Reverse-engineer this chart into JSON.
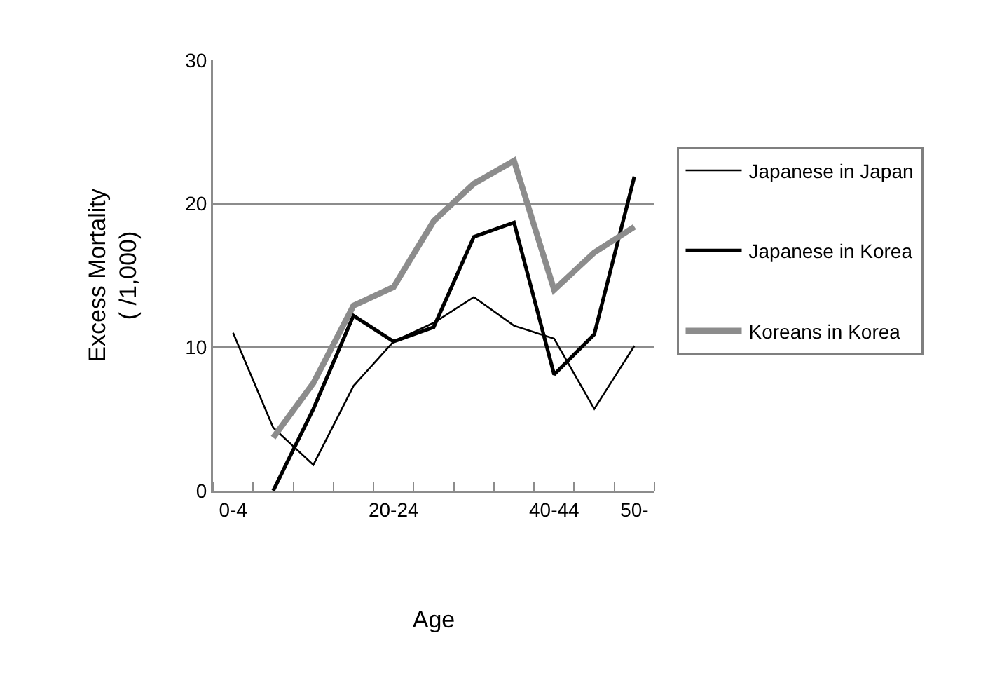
{
  "chart_data": {
    "type": "line",
    "ylabel": "Excess Mortality\n( /1,000)",
    "xlabel": "Age",
    "categories": [
      "0-4",
      null,
      null,
      null,
      "20-24",
      null,
      null,
      null,
      "40-44",
      null,
      "50-"
    ],
    "series": [
      {
        "name": "Japanese in Japan",
        "color": "#000000",
        "values": [
          11.0,
          4.4,
          1.8,
          7.3,
          10.4,
          11.7,
          13.5,
          11.5,
          10.6,
          5.7,
          10.1
        ]
      },
      {
        "name": "Japanese in Korea",
        "color": "#000000",
        "values": [
          null,
          0,
          5.7,
          12.2,
          10.4,
          11.4,
          17.7,
          18.7,
          8.1,
          10.9,
          21.9
        ]
      },
      {
        "name": "Koreans in Korea",
        "color": "#8c8c8c",
        "values": [
          null,
          3.7,
          7.5,
          12.9,
          14.2,
          18.8,
          21.4,
          23.0,
          14.0,
          16.6,
          18.4
        ]
      }
    ],
    "ylim": [
      0,
      30
    ],
    "yticks": [
      0,
      10,
      20,
      30
    ],
    "grid": "y",
    "legend": "right",
    "marker": "none",
    "line_style": "solid"
  }
}
